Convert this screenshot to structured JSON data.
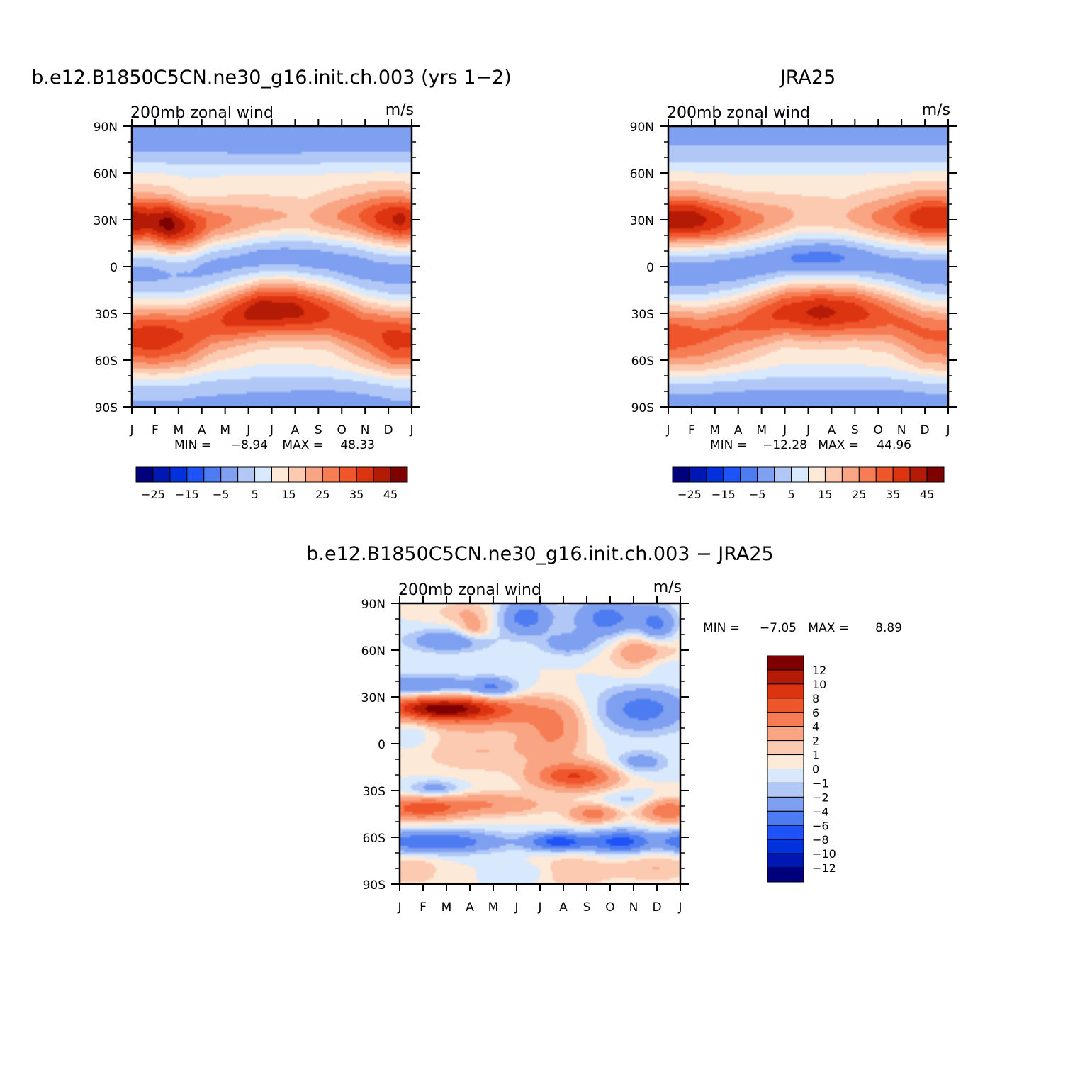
{
  "chart_data": [
    {
      "type": "heatmap",
      "title": "b.e12.B1850C5CN.ne30_g16.init.ch.003 (yrs 1−2)",
      "variable_label": "200mb zonal wind",
      "units_label": "m/s",
      "x_ticks": [
        "J",
        "F",
        "M",
        "A",
        "M",
        "J",
        "J",
        "A",
        "S",
        "O",
        "N",
        "D",
        "J"
      ],
      "y_ticks": [
        "90N",
        "60N",
        "30N",
        "0",
        "30S",
        "60S",
        "90S"
      ],
      "y_range": [
        -90,
        90
      ],
      "stats": {
        "min_label": "MIN =",
        "min_value": "−8.94",
        "max_label": "MAX =",
        "max_value": "48.33"
      },
      "colorbar": {
        "orientation": "horizontal",
        "labels": [
          "−25",
          "−15",
          "−5",
          "5",
          "15",
          "25",
          "35",
          "45"
        ],
        "levels": [
          -30,
          -25,
          -20,
          -15,
          -10,
          -5,
          0,
          5,
          10,
          15,
          20,
          25,
          30,
          35,
          40,
          45,
          50
        ],
        "colors": [
          "#00007f",
          "#0017b3",
          "#0031dd",
          "#1e54f7",
          "#4c7bf2",
          "#7fa0f0",
          "#b1c8f7",
          "#d8e8fd",
          "#fde9d8",
          "#fccab1",
          "#f9a583",
          "#f67c54",
          "#f0562b",
          "#dc3311",
          "#b31b06",
          "#7f0000"
        ]
      },
      "features": {
        "jet_north": [
          [
            0,
            29,
            45
          ],
          [
            0.7,
            29,
            42
          ],
          [
            1.6,
            27,
            48
          ],
          [
            2.5,
            25,
            38
          ],
          [
            3.5,
            28,
            28
          ],
          [
            5.5,
            31,
            22
          ],
          [
            7.5,
            31,
            20
          ],
          [
            9.5,
            32,
            28
          ],
          [
            10.8,
            31,
            38
          ],
          [
            11.5,
            30,
            42
          ],
          [
            12,
            30,
            38
          ]
        ],
        "jet_south": [
          [
            0,
            -44,
            36
          ],
          [
            1,
            -44,
            38
          ],
          [
            2.3,
            -43,
            34
          ],
          [
            3.5,
            -36,
            33
          ],
          [
            5.5,
            -28,
            44
          ],
          [
            7,
            -28,
            42
          ],
          [
            8.5,
            -31,
            35
          ],
          [
            10,
            -40,
            32
          ],
          [
            11.2,
            -45,
            36
          ],
          [
            12,
            -45,
            35
          ]
        ],
        "tropics": [
          [
            0,
            -3,
            -4
          ],
          [
            1.8,
            0,
            -4
          ],
          [
            3,
            3,
            -6
          ],
          [
            4.5,
            5,
            -7
          ],
          [
            5.5,
            5,
            -9
          ],
          [
            6.5,
            7,
            -9
          ],
          [
            8,
            5,
            -8
          ],
          [
            9.2,
            2,
            -6
          ],
          [
            10.5,
            -2,
            -4
          ],
          [
            12,
            -3,
            -4
          ]
        ],
        "polar_north": [
          [
            0,
            83,
            -3
          ],
          [
            3,
            84,
            -4
          ],
          [
            6,
            82,
            -4
          ],
          [
            9,
            83,
            -3
          ],
          [
            12,
            83,
            -3
          ]
        ],
        "polar_south": [
          [
            0,
            -85,
            -1
          ],
          [
            4,
            -86,
            -1
          ],
          [
            8,
            -85,
            -2
          ],
          [
            12,
            -85,
            -1
          ]
        ]
      }
    },
    {
      "type": "heatmap",
      "title": "JRA25",
      "variable_label": "200mb zonal wind",
      "units_label": "m/s",
      "x_ticks": [
        "J",
        "F",
        "M",
        "A",
        "M",
        "J",
        "J",
        "A",
        "S",
        "O",
        "N",
        "D",
        "J"
      ],
      "y_ticks": [
        "90N",
        "60N",
        "30N",
        "0",
        "30S",
        "60S",
        "90S"
      ],
      "y_range": [
        -90,
        90
      ],
      "stats": {
        "min_label": "MIN =",
        "min_value": "−12.28",
        "max_label": "MAX =",
        "max_value": "44.96"
      },
      "colorbar": {
        "orientation": "horizontal",
        "labels": [
          "−25",
          "−15",
          "−5",
          "5",
          "15",
          "25",
          "35",
          "45"
        ],
        "levels": [
          -30,
          -25,
          -20,
          -15,
          -10,
          -5,
          0,
          5,
          10,
          15,
          20,
          25,
          30,
          35,
          40,
          45,
          50
        ],
        "colors": [
          "#00007f",
          "#0017b3",
          "#0031dd",
          "#1e54f7",
          "#4c7bf2",
          "#7fa0f0",
          "#b1c8f7",
          "#d8e8fd",
          "#fde9d8",
          "#fccab1",
          "#f9a583",
          "#f67c54",
          "#f0562b",
          "#dc3311",
          "#b31b06",
          "#7f0000"
        ]
      },
      "features": {
        "jet_north": [
          [
            0,
            30,
            44
          ],
          [
            1,
            30,
            44
          ],
          [
            2,
            29,
            38
          ],
          [
            3.5,
            29,
            28
          ],
          [
            5.5,
            32,
            20
          ],
          [
            7.5,
            31,
            20
          ],
          [
            9.5,
            31,
            29
          ],
          [
            11,
            31,
            40
          ],
          [
            12,
            31,
            39
          ]
        ],
        "jet_south": [
          [
            0,
            -43,
            33
          ],
          [
            1.5,
            -43,
            30
          ],
          [
            3,
            -38,
            30
          ],
          [
            5,
            -29,
            37
          ],
          [
            6.5,
            -29,
            42
          ],
          [
            8,
            -29,
            38
          ],
          [
            9.5,
            -33,
            31
          ],
          [
            11,
            -42,
            30
          ],
          [
            12,
            -43,
            30
          ]
        ],
        "tropics": [
          [
            0,
            -2,
            -6
          ],
          [
            2,
            0,
            -6
          ],
          [
            4,
            3,
            -8
          ],
          [
            5.5,
            5,
            -11
          ],
          [
            6.8,
            6,
            -12
          ],
          [
            8,
            5,
            -10
          ],
          [
            9.5,
            1,
            -6
          ],
          [
            12,
            -2,
            -5
          ]
        ],
        "polar_north": [
          [
            0,
            84,
            -1
          ],
          [
            3,
            84,
            -1
          ],
          [
            6,
            84,
            -1
          ],
          [
            9,
            84,
            -1
          ],
          [
            12,
            84,
            -1
          ]
        ],
        "polar_south": [
          [
            0,
            -84,
            -2
          ],
          [
            4,
            -84,
            -2
          ],
          [
            8,
            -84,
            -2
          ],
          [
            12,
            -84,
            -2
          ]
        ]
      }
    },
    {
      "type": "heatmap",
      "title": "b.e12.B1850C5CN.ne30_g16.init.ch.003 − JRA25",
      "variable_label": "200mb zonal wind",
      "units_label": "m/s",
      "x_ticks": [
        "J",
        "F",
        "M",
        "A",
        "M",
        "J",
        "J",
        "A",
        "S",
        "O",
        "N",
        "D",
        "J"
      ],
      "y_ticks": [
        "90N",
        "60N",
        "30N",
        "0",
        "30S",
        "60S",
        "90S"
      ],
      "y_range": [
        -90,
        90
      ],
      "stats": {
        "min_label": "MIN =",
        "min_value": "−7.05",
        "max_label": "MAX =",
        "max_value": "8.89"
      },
      "colorbar": {
        "orientation": "vertical",
        "labels": [
          "12",
          "10",
          "8",
          "6",
          "4",
          "2",
          "1",
          "0",
          "−1",
          "−2",
          "−4",
          "−6",
          "−8",
          "−10",
          "−12"
        ],
        "levels": [
          -14,
          -12,
          -10,
          -8,
          -6,
          -4,
          -2,
          -1,
          0,
          1,
          2,
          4,
          6,
          8,
          10,
          12,
          14
        ],
        "colors": [
          "#00007f",
          "#0017b3",
          "#0031dd",
          "#1e54f7",
          "#4c7bf2",
          "#7fa0f0",
          "#b1c8f7",
          "#d8e8fd",
          "#fde9d8",
          "#fccab1",
          "#f9a583",
          "#f67c54",
          "#f0562b",
          "#dc3311",
          "#b31b06",
          "#7f0000"
        ]
      },
      "features": {
        "blobs": [
          [
            3,
            21,
            2.2,
            7,
            7
          ],
          [
            1.5,
            23,
            1.5,
            5,
            8
          ],
          [
            7.5,
            -21,
            1.2,
            6,
            8
          ],
          [
            6.6,
            8,
            0.9,
            12,
            4
          ],
          [
            0.8,
            -42,
            1.2,
            5,
            6
          ],
          [
            3.5,
            -39,
            2,
            5,
            4
          ],
          [
            8.3,
            -45,
            0.7,
            4,
            5
          ],
          [
            11.5,
            -43,
            0.8,
            5,
            6
          ],
          [
            10.5,
            60,
            1,
            10,
            4
          ],
          [
            3.2,
            73,
            0.5,
            5,
            3
          ],
          [
            3.5,
            -5,
            2,
            10,
            2
          ],
          [
            1.5,
            -63,
            2,
            5,
            -6
          ],
          [
            6.8,
            -63,
            0.9,
            4,
            -7
          ],
          [
            9.5,
            -63,
            1,
            5,
            -7
          ],
          [
            12,
            -63,
            0.6,
            5,
            -5
          ],
          [
            5.4,
            81,
            0.8,
            8,
            -5
          ],
          [
            8.9,
            80,
            1,
            9,
            -5
          ],
          [
            11,
            75,
            0.6,
            9,
            -5
          ],
          [
            2.1,
            66,
            1.2,
            5,
            -4
          ],
          [
            7.2,
            64,
            0.8,
            5,
            -3
          ],
          [
            1,
            37,
            1.8,
            5,
            -4
          ],
          [
            4,
            35,
            0.7,
            5,
            -4
          ],
          [
            10.4,
            22,
            1.3,
            10,
            -5
          ],
          [
            10.3,
            -12,
            0.8,
            5,
            -3
          ],
          [
            1.5,
            -29,
            0.8,
            4,
            -3
          ],
          [
            11.2,
            50,
            0.7,
            5,
            -2
          ],
          [
            0.5,
            -81,
            0.9,
            7,
            2
          ],
          [
            7.3,
            -82,
            1.3,
            8,
            2
          ],
          [
            11,
            -79,
            1.2,
            7,
            2
          ],
          [
            2.8,
            84,
            0.9,
            5,
            2
          ],
          [
            5.5,
            -83,
            0.8,
            5,
            -1.5
          ],
          [
            0.6,
            8,
            0.6,
            8,
            -1.5
          ],
          [
            9.8,
            -36,
            0.8,
            4,
            -1.5
          ]
        ]
      }
    }
  ]
}
